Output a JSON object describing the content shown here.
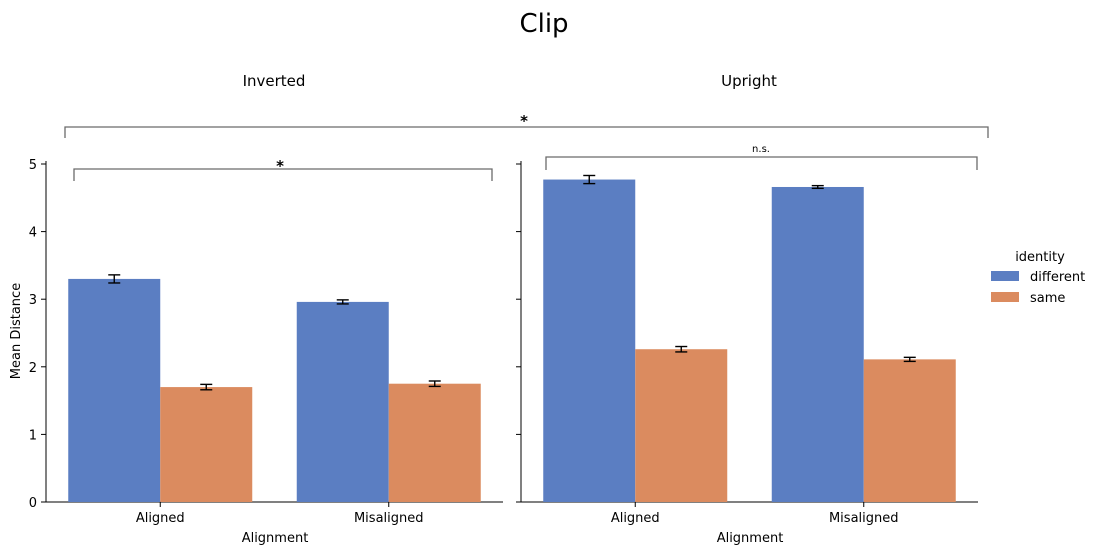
{
  "chart_data": {
    "type": "bar",
    "title": "Clip",
    "ylabel": "Mean Distance",
    "ylim": [
      0,
      5
    ],
    "yticks": [
      "0",
      "1",
      "2",
      "3",
      "4",
      "5"
    ],
    "legend": {
      "title": "identity",
      "placement": "right",
      "entries": [
        {
          "name": "different",
          "color": "#5b7ec2"
        },
        {
          "name": "same",
          "color": "#db8b5f"
        }
      ]
    },
    "panels": [
      {
        "title": "Inverted",
        "xlabel": "Alignment",
        "categories": [
          "Aligned",
          "Misaligned"
        ],
        "series": [
          {
            "name": "different",
            "values": [
              3.3,
              2.96
            ],
            "errors": [
              0.06,
              0.03
            ]
          },
          {
            "name": "same",
            "values": [
              1.7,
              1.75
            ],
            "errors": [
              0.04,
              0.04
            ]
          }
        ],
        "annotation": "*"
      },
      {
        "title": "Upright",
        "xlabel": "Alignment",
        "categories": [
          "Aligned",
          "Misaligned"
        ],
        "series": [
          {
            "name": "different",
            "values": [
              4.77,
              4.66
            ],
            "errors": [
              0.06,
              0.02
            ]
          },
          {
            "name": "same",
            "values": [
              2.26,
              2.11
            ],
            "errors": [
              0.04,
              0.03
            ]
          }
        ],
        "annotation": "n.s."
      }
    ],
    "top_annotation": "*"
  }
}
